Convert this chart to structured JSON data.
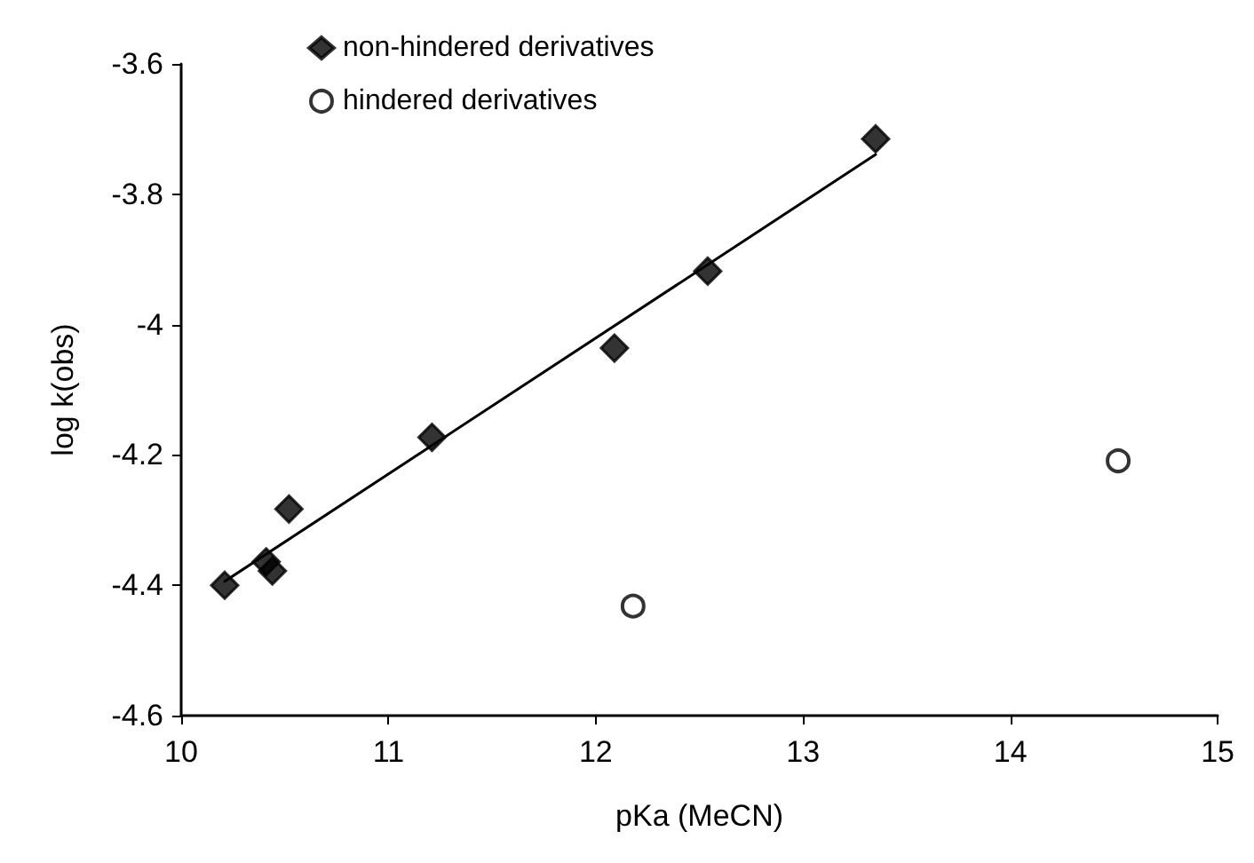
{
  "chart_data": {
    "type": "scatter",
    "xlabel": "pKa (MeCN)",
    "ylabel": "log k(obs)",
    "xlim": [
      10,
      15
    ],
    "xticks": [
      10,
      11,
      12,
      13,
      14,
      15
    ],
    "ylim": [
      -4.6,
      -3.6
    ],
    "yticks": [
      -4.6,
      -4.4,
      -4.2,
      -4,
      -3.8,
      -3.6
    ],
    "grid": false,
    "legend": "top left",
    "series": [
      {
        "name": "non-hindered derivatives",
        "color": "#000000",
        "marker": "diamond",
        "x": [
          10.21,
          10.41,
          10.44,
          10.52,
          11.21,
          12.09,
          12.54,
          13.35
        ],
        "values": [
          -4.4,
          -4.364,
          -4.378,
          -4.283,
          -4.173,
          -4.036,
          -3.918,
          -3.715
        ]
      },
      {
        "name": "hindered derivatives",
        "color": "#000000",
        "marker": "circle",
        "x": [
          12.18,
          14.52
        ],
        "values": [
          -4.432,
          -4.209
        ]
      },
      {
        "type": "line",
        "color": "#000000",
        "marker": "none",
        "line_style": "solid",
        "x": [
          10.21,
          13.35
        ],
        "values": [
          -4.394,
          -3.739
        ]
      }
    ]
  }
}
